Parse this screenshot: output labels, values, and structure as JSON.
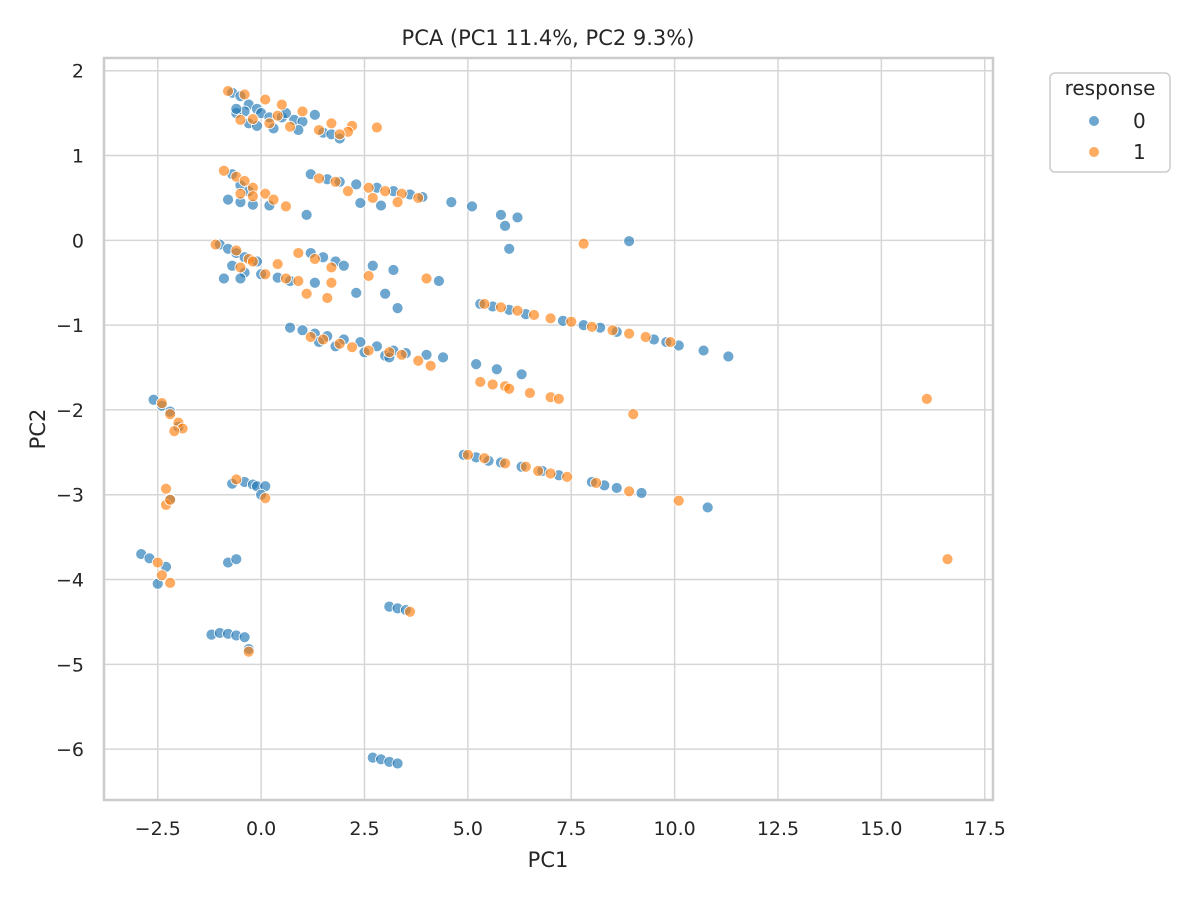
{
  "chart_data": {
    "type": "scatter",
    "title": "PCA (PC1 11.4%, PC2 9.3%)",
    "xlabel": "PC1",
    "ylabel": "PC2",
    "xlim": [
      -3.8,
      17.7
    ],
    "ylim": [
      -6.6,
      2.15
    ],
    "xticks": [
      -2.5,
      0.0,
      2.5,
      5.0,
      7.5,
      10.0,
      12.5,
      15.0,
      17.5
    ],
    "xtick_labels": [
      "−2.5",
      "0.0",
      "2.5",
      "5.0",
      "7.5",
      "10.0",
      "12.5",
      "15.0",
      "17.5"
    ],
    "yticks": [
      2,
      1,
      0,
      -1,
      -2,
      -3,
      -4,
      -5,
      -6
    ],
    "ytick_labels": [
      "2",
      "1",
      "0",
      "−1",
      "−2",
      "−3",
      "−4",
      "−5",
      "−6"
    ],
    "grid": true,
    "legend": {
      "title": "response",
      "placement": "outside-top-right",
      "entries": [
        {
          "label": "0",
          "color": "#1f77b4"
        },
        {
          "label": "1",
          "color": "#ff7f0e"
        }
      ]
    },
    "colors": {
      "0": "#1f77b4",
      "1": "#ff7f0e",
      "overlap": "#4f6475"
    },
    "series": [
      {
        "name": "0",
        "color": "#1f77b4",
        "points": [
          [
            -0.7,
            1.74
          ],
          [
            -0.5,
            1.7
          ],
          [
            -0.3,
            1.6
          ],
          [
            -0.1,
            1.55
          ],
          [
            -0.4,
            1.52
          ],
          [
            -0.6,
            1.5
          ],
          [
            0.0,
            1.5
          ],
          [
            0.2,
            1.45
          ],
          [
            0.5,
            1.45
          ],
          [
            0.8,
            1.42
          ],
          [
            1.0,
            1.4
          ],
          [
            1.3,
            1.48
          ],
          [
            -0.3,
            1.38
          ],
          [
            -0.1,
            1.35
          ],
          [
            0.3,
            1.32
          ],
          [
            0.9,
            1.3
          ],
          [
            1.5,
            1.27
          ],
          [
            -0.6,
            1.55
          ],
          [
            0.6,
            1.5
          ],
          [
            1.7,
            1.25
          ],
          [
            1.9,
            1.2
          ],
          [
            1.2,
            0.78
          ],
          [
            1.6,
            0.72
          ],
          [
            1.9,
            0.69
          ],
          [
            2.3,
            0.66
          ],
          [
            2.8,
            0.62
          ],
          [
            3.2,
            0.58
          ],
          [
            3.6,
            0.54
          ],
          [
            3.9,
            0.51
          ],
          [
            2.4,
            0.44
          ],
          [
            2.9,
            0.41
          ],
          [
            4.6,
            0.45
          ],
          [
            5.1,
            0.4
          ],
          [
            5.8,
            0.3
          ],
          [
            5.9,
            0.17
          ],
          [
            6.2,
            0.27
          ],
          [
            6.0,
            -0.1
          ],
          [
            8.9,
            -0.01
          ],
          [
            -0.7,
            0.78
          ],
          [
            -0.5,
            0.65
          ],
          [
            -0.3,
            0.58
          ],
          [
            -0.5,
            0.45
          ],
          [
            -0.2,
            0.42
          ],
          [
            -0.8,
            0.48
          ],
          [
            0.2,
            0.41
          ],
          [
            1.1,
            0.3
          ],
          [
            -1.0,
            -0.05
          ],
          [
            -0.8,
            -0.1
          ],
          [
            -0.6,
            -0.15
          ],
          [
            -0.4,
            -0.2
          ],
          [
            -0.1,
            -0.25
          ],
          [
            -0.7,
            -0.3
          ],
          [
            -0.4,
            -0.38
          ],
          [
            0.0,
            -0.4
          ],
          [
            0.4,
            -0.44
          ],
          [
            0.7,
            -0.48
          ],
          [
            1.2,
            -0.15
          ],
          [
            1.5,
            -0.2
          ],
          [
            1.8,
            -0.25
          ],
          [
            2.0,
            -0.3
          ],
          [
            1.3,
            -0.5
          ],
          [
            2.3,
            -0.62
          ],
          [
            2.7,
            -0.3
          ],
          [
            3.2,
            -0.35
          ],
          [
            3.0,
            -0.63
          ],
          [
            3.3,
            -0.8
          ],
          [
            4.3,
            -0.48
          ],
          [
            -0.9,
            -0.45
          ],
          [
            -0.5,
            -0.45
          ],
          [
            5.3,
            -0.75
          ],
          [
            5.6,
            -0.78
          ],
          [
            6.0,
            -0.82
          ],
          [
            6.4,
            -0.87
          ],
          [
            7.3,
            -0.95
          ],
          [
            7.8,
            -1.0
          ],
          [
            8.2,
            -1.03
          ],
          [
            8.6,
            -1.08
          ],
          [
            9.5,
            -1.17
          ],
          [
            9.8,
            -1.2
          ],
          [
            10.1,
            -1.24
          ],
          [
            10.7,
            -1.3
          ],
          [
            11.3,
            -1.37
          ],
          [
            0.7,
            -1.03
          ],
          [
            1.0,
            -1.06
          ],
          [
            1.3,
            -1.1
          ],
          [
            1.6,
            -1.13
          ],
          [
            2.0,
            -1.17
          ],
          [
            2.4,
            -1.2
          ],
          [
            2.8,
            -1.25
          ],
          [
            3.2,
            -1.3
          ],
          [
            3.5,
            -1.33
          ],
          [
            4.0,
            -1.35
          ],
          [
            1.4,
            -1.2
          ],
          [
            1.8,
            -1.25
          ],
          [
            2.5,
            -1.32
          ],
          [
            3.0,
            -1.36
          ],
          [
            3.1,
            -1.38
          ],
          [
            4.4,
            -1.38
          ],
          [
            5.2,
            -1.46
          ],
          [
            5.7,
            -1.52
          ],
          [
            6.3,
            -1.58
          ],
          [
            4.9,
            -2.53
          ],
          [
            5.2,
            -2.56
          ],
          [
            5.5,
            -2.6
          ],
          [
            5.8,
            -2.62
          ],
          [
            6.3,
            -2.67
          ],
          [
            6.8,
            -2.72
          ],
          [
            7.2,
            -2.77
          ],
          [
            8.0,
            -2.85
          ],
          [
            8.3,
            -2.89
          ],
          [
            8.6,
            -2.92
          ],
          [
            9.2,
            -2.98
          ],
          [
            10.8,
            -3.15
          ],
          [
            -2.6,
            -1.88
          ],
          [
            -2.4,
            -1.95
          ],
          [
            -2.2,
            -2.02
          ],
          [
            -2.0,
            -2.2
          ],
          [
            -2.2,
            -3.05
          ],
          [
            -0.7,
            -2.87
          ],
          [
            -0.4,
            -2.85
          ],
          [
            -0.2,
            -2.88
          ],
          [
            -0.1,
            -2.9
          ],
          [
            0.1,
            -2.9
          ],
          [
            0.0,
            -3.0
          ],
          [
            -2.9,
            -3.7
          ],
          [
            -2.7,
            -3.75
          ],
          [
            -2.5,
            -4.05
          ],
          [
            -2.3,
            -3.85
          ],
          [
            -0.8,
            -3.8
          ],
          [
            -0.6,
            -3.76
          ],
          [
            -1.2,
            -4.65
          ],
          [
            -1.0,
            -4.63
          ],
          [
            -0.8,
            -4.64
          ],
          [
            -0.6,
            -4.66
          ],
          [
            -0.4,
            -4.68
          ],
          [
            -0.3,
            -4.82
          ],
          [
            3.1,
            -4.32
          ],
          [
            3.3,
            -4.34
          ],
          [
            3.5,
            -4.36
          ],
          [
            2.7,
            -6.1
          ],
          [
            2.9,
            -6.12
          ],
          [
            3.1,
            -6.15
          ],
          [
            3.3,
            -6.17
          ]
        ]
      },
      {
        "name": "1",
        "color": "#ff7f0e",
        "points": [
          [
            -0.8,
            1.76
          ],
          [
            -0.4,
            1.72
          ],
          [
            0.1,
            1.66
          ],
          [
            0.5,
            1.6
          ],
          [
            1.0,
            1.52
          ],
          [
            1.7,
            1.38
          ],
          [
            2.2,
            1.35
          ],
          [
            2.1,
            1.28
          ],
          [
            2.8,
            1.33
          ],
          [
            -0.5,
            1.42
          ],
          [
            0.2,
            1.38
          ],
          [
            0.7,
            1.34
          ],
          [
            1.4,
            1.3
          ],
          [
            1.9,
            1.25
          ],
          [
            0.4,
            1.47
          ],
          [
            -0.2,
            1.43
          ],
          [
            -0.9,
            0.82
          ],
          [
            -0.6,
            0.75
          ],
          [
            -0.4,
            0.7
          ],
          [
            -0.2,
            0.62
          ],
          [
            0.1,
            0.55
          ],
          [
            0.3,
            0.48
          ],
          [
            0.6,
            0.4
          ],
          [
            -0.5,
            0.55
          ],
          [
            -0.2,
            0.52
          ],
          [
            1.4,
            0.73
          ],
          [
            1.8,
            0.69
          ],
          [
            2.6,
            0.62
          ],
          [
            3.0,
            0.58
          ],
          [
            3.4,
            0.55
          ],
          [
            3.8,
            0.5
          ],
          [
            2.1,
            0.58
          ],
          [
            2.7,
            0.5
          ],
          [
            3.3,
            0.45
          ],
          [
            -1.1,
            -0.05
          ],
          [
            -0.6,
            -0.12
          ],
          [
            -0.3,
            -0.22
          ],
          [
            0.4,
            -0.28
          ],
          [
            0.9,
            -0.48
          ],
          [
            -0.5,
            -0.32
          ],
          [
            0.1,
            -0.4
          ],
          [
            0.6,
            -0.45
          ],
          [
            1.1,
            -0.63
          ],
          [
            1.6,
            -0.68
          ],
          [
            1.7,
            -0.5
          ],
          [
            0.9,
            -0.15
          ],
          [
            1.3,
            -0.22
          ],
          [
            1.7,
            -0.32
          ],
          [
            2.6,
            -0.42
          ],
          [
            4.0,
            -0.45
          ],
          [
            -0.2,
            -0.25
          ],
          [
            5.4,
            -0.75
          ],
          [
            5.8,
            -0.79
          ],
          [
            6.2,
            -0.83
          ],
          [
            6.6,
            -0.88
          ],
          [
            7.0,
            -0.92
          ],
          [
            7.5,
            -0.96
          ],
          [
            8.0,
            -1.02
          ],
          [
            8.5,
            -1.06
          ],
          [
            8.9,
            -1.1
          ],
          [
            9.3,
            -1.14
          ],
          [
            9.9,
            -1.2
          ],
          [
            1.2,
            -1.14
          ],
          [
            1.5,
            -1.17
          ],
          [
            1.9,
            -1.22
          ],
          [
            2.2,
            -1.26
          ],
          [
            2.6,
            -1.3
          ],
          [
            3.1,
            -1.32
          ],
          [
            3.4,
            -1.35
          ],
          [
            4.1,
            -1.48
          ],
          [
            3.8,
            -1.42
          ],
          [
            5.3,
            -1.67
          ],
          [
            5.6,
            -1.7
          ],
          [
            5.9,
            -1.72
          ],
          [
            6.0,
            -1.75
          ],
          [
            6.5,
            -1.8
          ],
          [
            7.0,
            -1.85
          ],
          [
            7.2,
            -1.87
          ],
          [
            9.0,
            -2.05
          ],
          [
            16.1,
            -1.87
          ],
          [
            7.8,
            -0.04
          ],
          [
            5.0,
            -2.53
          ],
          [
            5.4,
            -2.57
          ],
          [
            5.9,
            -2.63
          ],
          [
            6.4,
            -2.67
          ],
          [
            6.7,
            -2.72
          ],
          [
            7.0,
            -2.75
          ],
          [
            7.4,
            -2.79
          ],
          [
            8.1,
            -2.86
          ],
          [
            8.9,
            -2.96
          ],
          [
            10.1,
            -3.07
          ],
          [
            16.6,
            -3.76
          ],
          [
            -2.4,
            -1.92
          ],
          [
            -2.2,
            -2.05
          ],
          [
            -2.0,
            -2.15
          ],
          [
            -1.9,
            -2.22
          ],
          [
            -2.1,
            -2.25
          ],
          [
            -2.3,
            -2.93
          ],
          [
            -2.3,
            -3.12
          ],
          [
            -2.2,
            -3.06
          ],
          [
            -0.6,
            -2.82
          ],
          [
            0.1,
            -3.04
          ],
          [
            -2.5,
            -3.8
          ],
          [
            -2.4,
            -3.95
          ],
          [
            -2.2,
            -4.04
          ],
          [
            -0.3,
            -4.85
          ],
          [
            3.6,
            -4.38
          ]
        ]
      }
    ]
  }
}
